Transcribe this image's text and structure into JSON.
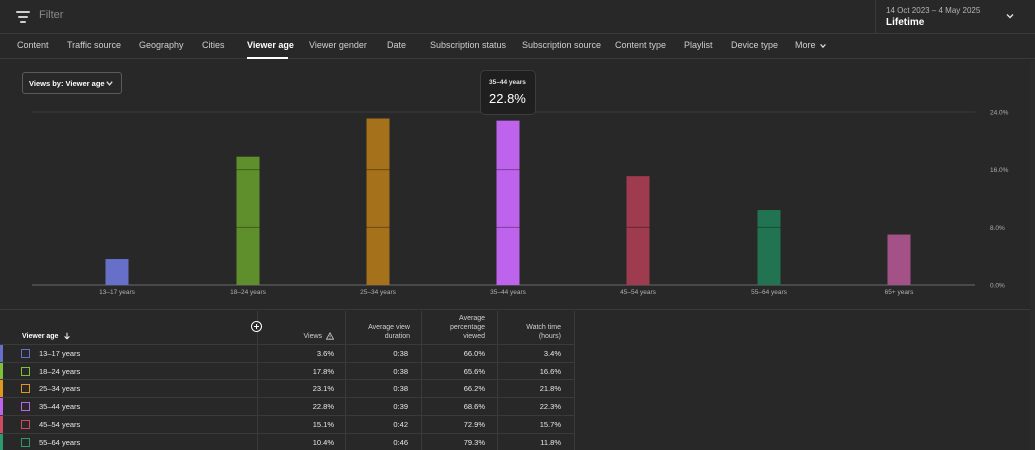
{
  "filter": {
    "placeholder": "Filter"
  },
  "date": {
    "range": "14 Oct 2023 – 4 May 2025",
    "value": "Lifetime"
  },
  "tabs": [
    {
      "label": "Content"
    },
    {
      "label": "Traffic source"
    },
    {
      "label": "Geography"
    },
    {
      "label": "Cities"
    },
    {
      "label": "Viewer age"
    },
    {
      "label": "Viewer gender"
    },
    {
      "label": "Date"
    },
    {
      "label": "Subscription status"
    },
    {
      "label": "Subscription source"
    },
    {
      "label": "Content type"
    },
    {
      "label": "Playlist"
    },
    {
      "label": "Device type"
    },
    {
      "label": "More"
    }
  ],
  "dropdown": {
    "label": "Views by: Viewer age"
  },
  "tooltip": {
    "category": "35–44 years",
    "value": "22.8%"
  },
  "colors": {
    "13-17": "#6670c8",
    "18-24": "#5f8e2c",
    "25-34": "#a5711a",
    "35-44": "#bd63ec",
    "45-54": "#9e3b4e",
    "55-64": "#227352",
    "65+": "#a35187"
  },
  "chart_data": {
    "type": "bar",
    "categories": [
      "13–17 years",
      "18–24 years",
      "25–34 years",
      "35–44 years",
      "45–54 years",
      "55–64 years",
      "65+ years"
    ],
    "values": [
      3.6,
      17.8,
      23.1,
      22.8,
      15.1,
      10.4,
      7.0
    ],
    "yticks": [
      "24.0%",
      "16.0%",
      "8.0%",
      "0.0%"
    ],
    "ylim": [
      0,
      24
    ],
    "grid": true
  },
  "table": {
    "headers": {
      "viewer_age": "Viewer age",
      "views": "Views",
      "avg_view_duration_1": "Average view",
      "avg_view_duration_2": "duration",
      "avg_pct_1": "Average",
      "avg_pct_2": "percentage",
      "avg_pct_3": "viewed",
      "watch_time_1": "Watch time",
      "watch_time_2": "(hours)"
    },
    "rows": [
      {
        "label": "13–17 years",
        "views": "3.6%",
        "duration": "0:38",
        "pct": "66.0%",
        "watch": "3.4%",
        "color": "#6670c8"
      },
      {
        "label": "18–24 years",
        "views": "17.8%",
        "duration": "0:38",
        "pct": "65.6%",
        "watch": "16.6%",
        "color": "#7fbf3a"
      },
      {
        "label": "25–34 years",
        "views": "23.1%",
        "duration": "0:38",
        "pct": "66.2%",
        "watch": "21.8%",
        "color": "#e0961f"
      },
      {
        "label": "35–44 years",
        "views": "22.8%",
        "duration": "0:39",
        "pct": "68.6%",
        "watch": "22.3%",
        "color": "#bd63ec"
      },
      {
        "label": "45–54 years",
        "views": "15.1%",
        "duration": "0:42",
        "pct": "72.9%",
        "watch": "15.7%",
        "color": "#d04a62"
      },
      {
        "label": "55–64 years",
        "views": "10.4%",
        "duration": "0:46",
        "pct": "79.3%",
        "watch": "11.8%",
        "color": "#2b9b6c"
      }
    ]
  }
}
